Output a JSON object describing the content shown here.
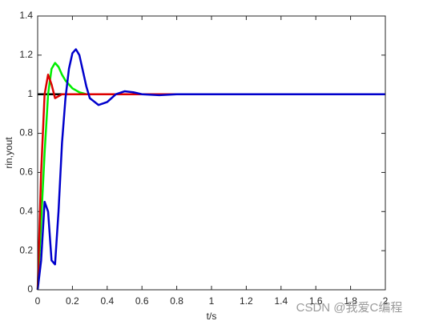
{
  "chart_data": {
    "type": "line",
    "xlabel": "t/s",
    "ylabel": "rin,yout",
    "x": [
      0,
      0.02,
      0.04,
      0.06,
      0.08,
      0.1,
      0.12,
      0.14,
      0.16,
      0.18,
      0.2,
      0.22,
      0.24,
      0.26,
      0.28,
      0.3,
      0.35,
      0.4,
      0.45,
      0.5,
      0.55,
      0.6,
      0.7,
      0.8,
      1.0,
      1.5,
      2.0
    ],
    "series": [
      {
        "name": "rin",
        "color": "#000000",
        "values": [
          1,
          1,
          1,
          1,
          1,
          1,
          1,
          1,
          1,
          1,
          1,
          1,
          1,
          1,
          1,
          1,
          1,
          1,
          1,
          1,
          1,
          1,
          1,
          1,
          1,
          1,
          1
        ]
      },
      {
        "name": "green",
        "color": "#00ee00",
        "values": [
          0,
          0.35,
          0.7,
          1.0,
          1.13,
          1.16,
          1.14,
          1.1,
          1.07,
          1.05,
          1.03,
          1.02,
          1.01,
          1.005,
          1,
          1,
          1,
          1,
          1,
          1,
          1,
          1,
          1,
          1,
          1,
          1,
          1
        ]
      },
      {
        "name": "red",
        "color": "#dd0000",
        "values": [
          0,
          0.6,
          1.0,
          1.1,
          1.05,
          0.98,
          0.99,
          1.0,
          1,
          1,
          1,
          1,
          1,
          1,
          1,
          1,
          1,
          1,
          1,
          1,
          1,
          1,
          1,
          1,
          1,
          1,
          1
        ]
      },
      {
        "name": "blue",
        "color": "#0000cc",
        "values": [
          0,
          0.15,
          0.45,
          0.4,
          0.15,
          0.13,
          0.4,
          0.75,
          0.98,
          1.13,
          1.21,
          1.23,
          1.2,
          1.12,
          1.04,
          0.98,
          0.945,
          0.96,
          1.0,
          1.015,
          1.01,
          1.0,
          0.995,
          1.0,
          1.0,
          1,
          1
        ]
      }
    ],
    "xlim": [
      0,
      2
    ],
    "xticks": [
      0,
      0.2,
      0.4,
      0.6,
      0.8,
      1,
      1.2,
      1.4,
      1.6,
      1.8,
      2
    ],
    "ylim": [
      0,
      1.4
    ],
    "yticks": [
      0,
      0.2,
      0.4,
      0.6,
      0.8,
      1,
      1.2,
      1.4
    ],
    "grid": false
  },
  "watermark": "CSDN @我爱C编程"
}
